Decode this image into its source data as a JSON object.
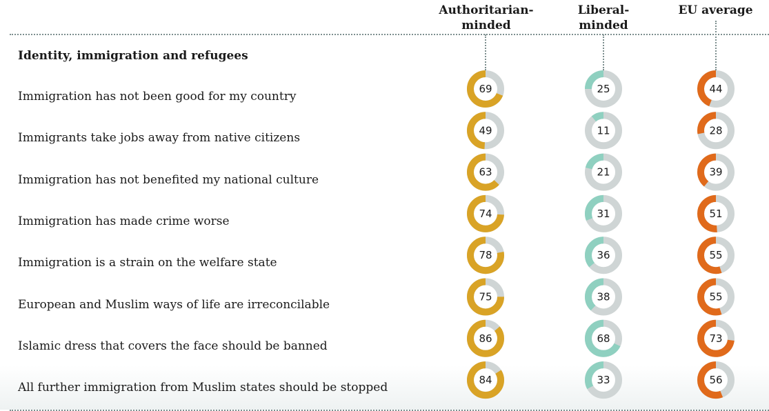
{
  "chart_data": {
    "type": "donut-grid",
    "columns": [
      {
        "label_line1": "Authoritarian-",
        "label_line2": "minded",
        "color": "#d9a326"
      },
      {
        "label_line1": "Liberal-",
        "label_line2": "minded",
        "color": "#8fd0c0"
      },
      {
        "label_line1": "EU average",
        "label_line2": "",
        "color": "#e06a1b"
      }
    ],
    "track_color": "#cfd5d5",
    "section_title": "Identity, immigration and refugees",
    "rows": [
      {
        "label": "Immigration has not been good for my country",
        "values": [
          69,
          25,
          44
        ]
      },
      {
        "label": "Immigrants take jobs away from native citizens",
        "values": [
          49,
          11,
          28
        ]
      },
      {
        "label": "Immigration has not benefited my national culture",
        "values": [
          63,
          21,
          39
        ]
      },
      {
        "label": "Immigration has made crime worse",
        "values": [
          74,
          31,
          51
        ]
      },
      {
        "label": "Immigration is a strain on the welfare state",
        "values": [
          78,
          36,
          55
        ]
      },
      {
        "label": "European and Muslim ways of life are irreconcilable",
        "values": [
          75,
          38,
          55
        ]
      },
      {
        "label": "Islamic dress that covers the face should be banned",
        "values": [
          86,
          68,
          73
        ]
      },
      {
        "label": "All further immigration from Muslim states should be stopped",
        "values": [
          84,
          33,
          56
        ]
      }
    ]
  }
}
